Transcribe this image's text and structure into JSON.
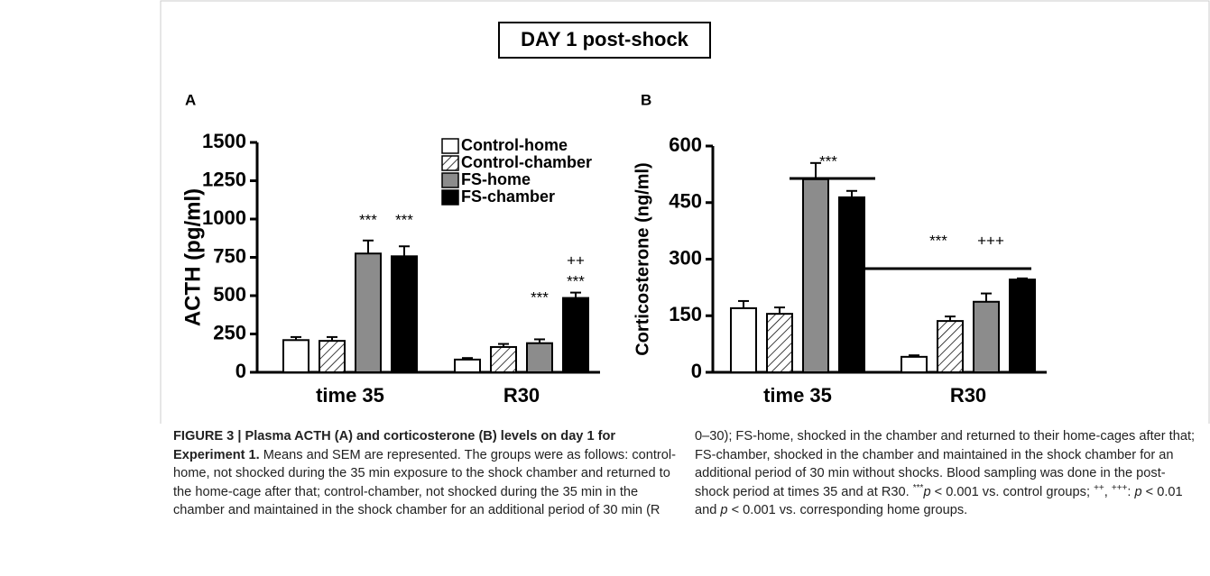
{
  "header": {
    "title": "DAY 1 post-shock"
  },
  "chart_data": [
    {
      "type": "bar",
      "panel": "A",
      "ylabel": "ACTH (pg/ml)",
      "categories": [
        "time 35",
        "R30"
      ],
      "series": [
        {
          "name": "Control-home",
          "color": "#ffffff",
          "values": [
            210,
            83
          ],
          "errors": [
            20,
            10
          ]
        },
        {
          "name": "Control-chamber",
          "color": "#ffffff",
          "pattern": "hatch",
          "values": [
            205,
            165
          ],
          "errors": [
            25,
            20
          ]
        },
        {
          "name": "FS-home",
          "color": "#8c8c8c",
          "values": [
            775,
            190
          ],
          "errors": [
            85,
            25
          ]
        },
        {
          "name": "FS-chamber",
          "color": "#000000",
          "values": [
            757,
            485
          ],
          "errors": [
            65,
            35
          ]
        }
      ],
      "ylim": [
        0,
        1500
      ],
      "yticks": [
        0,
        250,
        500,
        750,
        1000,
        1250,
        1500
      ],
      "annotations": [
        "***",
        "***",
        "***",
        "***",
        "++"
      ]
    },
    {
      "type": "bar",
      "panel": "B",
      "ylabel": "Corticosterone (ng/ml)",
      "categories": [
        "time 35",
        "R30"
      ],
      "series": [
        {
          "color": "#ffffff",
          "values": [
            170,
            41
          ],
          "errors": [
            19,
            4
          ]
        },
        {
          "color": "#ffffff",
          "pattern": "hatch",
          "values": [
            155,
            136
          ],
          "errors": [
            17,
            12
          ]
        },
        {
          "color": "#8c8c8c",
          "values": [
            512,
            187
          ],
          "errors": [
            43,
            22
          ]
        },
        {
          "color": "#000000",
          "values": [
            464,
            246
          ],
          "errors": [
            17,
            3
          ]
        }
      ],
      "ylim": [
        0,
        600
      ],
      "yticks": [
        0,
        150,
        300,
        450,
        600
      ],
      "annotations": [
        "***",
        "***",
        "+++"
      ]
    }
  ],
  "caption": {
    "parts": [
      "FIGURE 3 | Plasma ACTH (A) and corticosterone (B) levels on day 1 for Experiment 1.",
      " Means and SEM are represented. The groups were as follows: control-home, not shocked during the 35 min exposure to the shock chamber and returned to the home-cage after that; control-chamber, not shocked during the 35 min in the chamber and maintained in the shock chamber for an additional period of 30 min (R 0–30); FS-home, shocked in the chamber and returned to their home-cages after that; FS-chamber, shocked in the chamber and maintained in the shock chamber for an additional period of 30 min without shocks. Blood sampling was done in the post-shock period at times 35 and at R30. ",
      "***",
      "p",
      " < 0.001 vs. control groups; ",
      "++",
      ", ",
      "+++",
      ": ",
      "p",
      " < 0.01 and ",
      "p",
      " < 0.001 vs. corresponding home groups."
    ]
  }
}
